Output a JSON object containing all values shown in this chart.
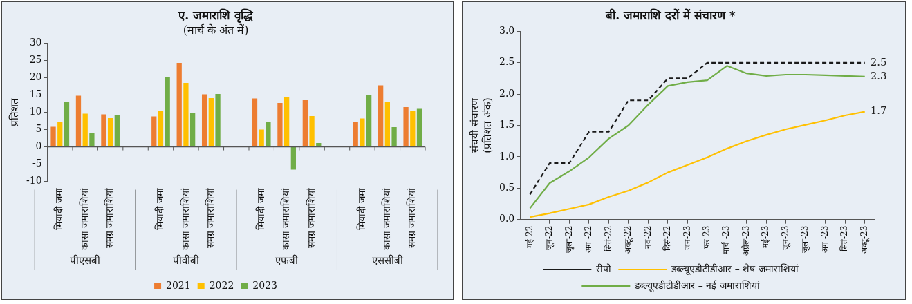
{
  "chart_data": [
    {
      "type": "bar",
      "title": "ए. जमाराशि वृद्धि",
      "subtitle": "(मार्च के अंत में)",
      "ylabel": "प्रतिशत",
      "categories": [
        "मियादी जमा",
        "कासा जमाराशियां",
        "समग्र जमाराशियां",
        null,
        "मियादी जमा",
        "कासा जमाराशियां",
        "समग्र जमाराशियां",
        null,
        "मियादी जमा",
        "कासा जमाराशियां",
        "समग्र जमाराशियां",
        null,
        "मियादी जमा",
        "कासा जमाराशियां",
        "समग्र जमाराशियां"
      ],
      "series": [
        {
          "name": "2021",
          "color": "#ed7d31",
          "values": [
            5.8,
            14.8,
            9.4,
            null,
            8.8,
            24.3,
            15.2,
            null,
            14.0,
            12.7,
            13.5,
            null,
            7.2,
            17.8,
            11.5
          ]
        },
        {
          "name": "2022",
          "color": "#ffc000",
          "values": [
            7.3,
            9.6,
            8.3,
            null,
            10.5,
            18.5,
            14.1,
            null,
            5.0,
            14.3,
            8.9,
            null,
            8.2,
            13.0,
            10.3
          ]
        },
        {
          "name": "2023",
          "color": "#70ad47",
          "values": [
            13.0,
            4.1,
            9.3,
            null,
            20.3,
            9.7,
            15.3,
            null,
            7.3,
            -6.6,
            1.1,
            null,
            15.1,
            5.7,
            11.0
          ]
        }
      ],
      "annotations": [
        "पीएसबी",
        "पीवीबी",
        "एफबी",
        "एससीबी"
      ],
      "ylim": [
        -10,
        30
      ],
      "yticks": [
        -10,
        -5,
        0,
        5,
        10,
        15,
        20,
        25,
        30
      ],
      "legend": "bottom"
    },
    {
      "type": "line",
      "title": "बी. जमाराशि दरों में संचारण *",
      "ylabel": "संचयी संचारण\n(प्रतिशत अंक)",
      "categories": [
        "मई-22",
        "जून-22",
        "जुला-22",
        "अग -22",
        "सितं-22",
        "अक्टू-22",
        "नवं-22",
        "दिसं-22",
        "जन-23",
        "फर-23",
        "मार्च -23",
        "अप्रैल-23",
        "मई-23",
        "जून-23",
        "जुला-23",
        "अग -23",
        "सितं-23",
        "अक्टू-23"
      ],
      "series": [
        {
          "name": "रीपो",
          "color": "#1a1a1a",
          "line_style": "dashed",
          "values": [
            0.4,
            0.9,
            0.9,
            1.4,
            1.4,
            1.9,
            1.9,
            2.25,
            2.25,
            2.5,
            2.5,
            2.5,
            2.5,
            2.5,
            2.5,
            2.5,
            2.5,
            2.5
          ],
          "value_labels": [
            null,
            null,
            null,
            null,
            null,
            null,
            null,
            null,
            null,
            null,
            null,
            null,
            null,
            null,
            null,
            null,
            null,
            "2.5"
          ]
        },
        {
          "name": "डब्ल्यूएडीटीडीआर – शेष जमाराशियां",
          "color": "#ffc000",
          "line_style": "solid",
          "values": [
            0.04,
            0.1,
            0.17,
            0.24,
            0.36,
            0.46,
            0.59,
            0.75,
            0.87,
            0.99,
            1.13,
            1.25,
            1.35,
            1.44,
            1.51,
            1.58,
            1.66,
            1.72
          ],
          "value_labels": [
            null,
            null,
            null,
            null,
            null,
            null,
            null,
            null,
            null,
            null,
            null,
            null,
            null,
            null,
            null,
            null,
            null,
            "1.7"
          ]
        },
        {
          "name": "डब्ल्यूएडीटीडीआर – नई जमाराशियां",
          "color": "#70ad47",
          "line_style": "solid",
          "values": [
            0.18,
            0.58,
            0.77,
            0.99,
            1.29,
            1.5,
            1.83,
            2.13,
            2.19,
            2.22,
            2.45,
            2.33,
            2.29,
            2.31,
            2.31,
            2.3,
            2.29,
            2.28
          ],
          "value_labels": [
            null,
            null,
            null,
            null,
            null,
            null,
            null,
            null,
            null,
            null,
            null,
            null,
            null,
            null,
            null,
            null,
            null,
            "2.3"
          ]
        }
      ],
      "ylim": [
        0,
        3
      ],
      "yticks": [
        {
          "value": 0,
          "label": "0.0"
        },
        {
          "value": 0.5,
          "label": "0.5"
        },
        {
          "value": 1,
          "label": "1.0"
        },
        {
          "value": 1.5,
          "label": "1.5"
        },
        {
          "value": 2,
          "label": "2.0"
        },
        {
          "value": 2.5,
          "label": "2.5"
        },
        {
          "value": 3,
          "label": "3.0"
        }
      ],
      "marker": "none",
      "legend": "bottom"
    }
  ]
}
